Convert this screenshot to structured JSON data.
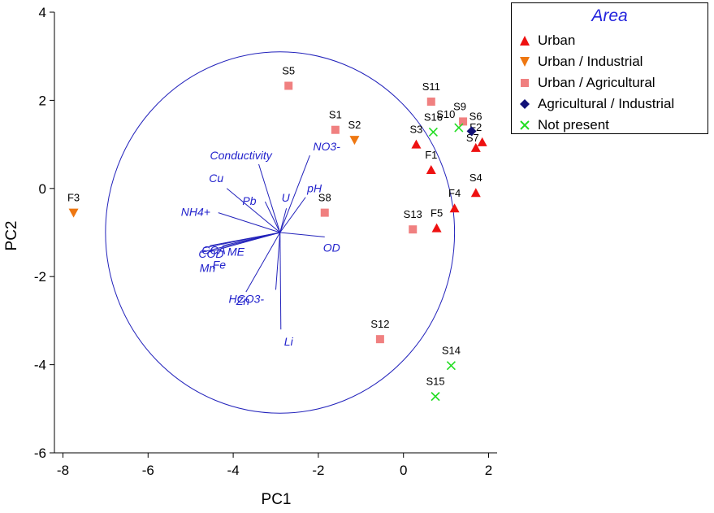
{
  "chart_data": {
    "type": "scatter",
    "xlabel": "PC1",
    "ylabel": "PC2",
    "xlim": [
      -8.2,
      2.2
    ],
    "ylim": [
      -6,
      4
    ],
    "xticks": [
      -8,
      -6,
      -4,
      -2,
      0,
      2
    ],
    "yticks": [
      -6,
      -4,
      -2,
      0,
      2,
      4
    ],
    "grid": false,
    "legend": {
      "title": "Area",
      "placement": "top-right",
      "entries": [
        {
          "name": "Urban",
          "marker": "triangle-up",
          "color": "#ee1111"
        },
        {
          "name": "Urban / Industrial",
          "marker": "triangle-down",
          "color": "#ee7711"
        },
        {
          "name": "Urban / Agricultural",
          "marker": "square",
          "color": "#f08080"
        },
        {
          "name": "Agricultural / Industrial",
          "marker": "diamond",
          "color": "#111177"
        },
        {
          "name": "Not present",
          "marker": "cross",
          "color": "#22dd22"
        }
      ]
    },
    "circle": {
      "cx": -2.9,
      "cy": -1.0,
      "r": 4.1,
      "color": "#2222bb"
    },
    "series": [
      {
        "name": "Urban",
        "points": [
          {
            "label": "S3",
            "x": 0.3,
            "y": 1.0
          },
          {
            "label": "F1",
            "x": 0.65,
            "y": 0.42
          },
          {
            "label": "F2",
            "x": 1.85,
            "y": 1.05
          },
          {
            "label": "S7",
            "x": 1.7,
            "y": 0.92
          },
          {
            "label": "S4",
            "x": 1.7,
            "y": -0.1
          },
          {
            "label": "F4",
            "x": 1.2,
            "y": -0.45
          },
          {
            "label": "F5",
            "x": 0.78,
            "y": -0.9
          }
        ]
      },
      {
        "name": "Urban / Industrial",
        "points": [
          {
            "label": "F3",
            "x": -7.75,
            "y": -0.55
          },
          {
            "label": "S2",
            "x": -1.15,
            "y": 1.1
          }
        ]
      },
      {
        "name": "Urban / Agricultural",
        "points": [
          {
            "label": "S5",
            "x": -2.7,
            "y": 2.33
          },
          {
            "label": "S1",
            "x": -1.6,
            "y": 1.33
          },
          {
            "label": "S8",
            "x": -1.85,
            "y": -0.55
          },
          {
            "label": "S11",
            "x": 0.65,
            "y": 1.97
          },
          {
            "label": "S9",
            "x": 1.4,
            "y": 1.52
          },
          {
            "label": "S13",
            "x": 0.22,
            "y": -0.93
          },
          {
            "label": "S12",
            "x": -0.55,
            "y": -3.42
          }
        ]
      },
      {
        "name": "Agricultural / Industrial",
        "points": [
          {
            "label": "S6",
            "x": 1.6,
            "y": 1.3
          }
        ]
      },
      {
        "name": "Not present",
        "points": [
          {
            "label": "S16",
            "x": 0.7,
            "y": 1.28
          },
          {
            "label": "S10",
            "x": 1.3,
            "y": 1.38
          },
          {
            "label": "S14",
            "x": 1.12,
            "y": -4.02
          },
          {
            "label": "S15",
            "x": 0.75,
            "y": -4.72
          }
        ]
      }
    ],
    "loadings": {
      "origin": [
        -2.9,
        -1.0
      ],
      "color": "#2222bb",
      "vectors": [
        {
          "label": "Conductivity",
          "x": -3.4,
          "y": 0.55
        },
        {
          "label": "Cu",
          "x": -4.15,
          "y": 0.0
        },
        {
          "label": "Pb",
          "x": -3.25,
          "y": -0.3
        },
        {
          "label": "U",
          "x": -2.75,
          "y": -0.45
        },
        {
          "label": "NO3-",
          "x": -2.2,
          "y": 0.75
        },
        {
          "label": "pH",
          "x": -2.3,
          "y": -0.2
        },
        {
          "label": "NH4+",
          "x": -4.35,
          "y": -0.55
        },
        {
          "label": "OD",
          "x": -1.85,
          "y": -1.1
        },
        {
          "label": "COD",
          "x": -4.7,
          "y": -1.35
        },
        {
          "label": "Mn",
          "x": -4.75,
          "y": -1.45
        },
        {
          "label": "Fe",
          "x": -4.6,
          "y": -1.45
        },
        {
          "label": "ME",
          "x": -4.25,
          "y": -1.3
        },
        {
          "label": "CCA",
          "x": -4.55,
          "y": -1.3
        },
        {
          "label": "Zn",
          "x": -3.7,
          "y": -2.35
        },
        {
          "label": "HCO3-",
          "x": -3.0,
          "y": -2.3
        },
        {
          "label": "Li",
          "x": -2.88,
          "y": -3.2
        }
      ]
    }
  }
}
